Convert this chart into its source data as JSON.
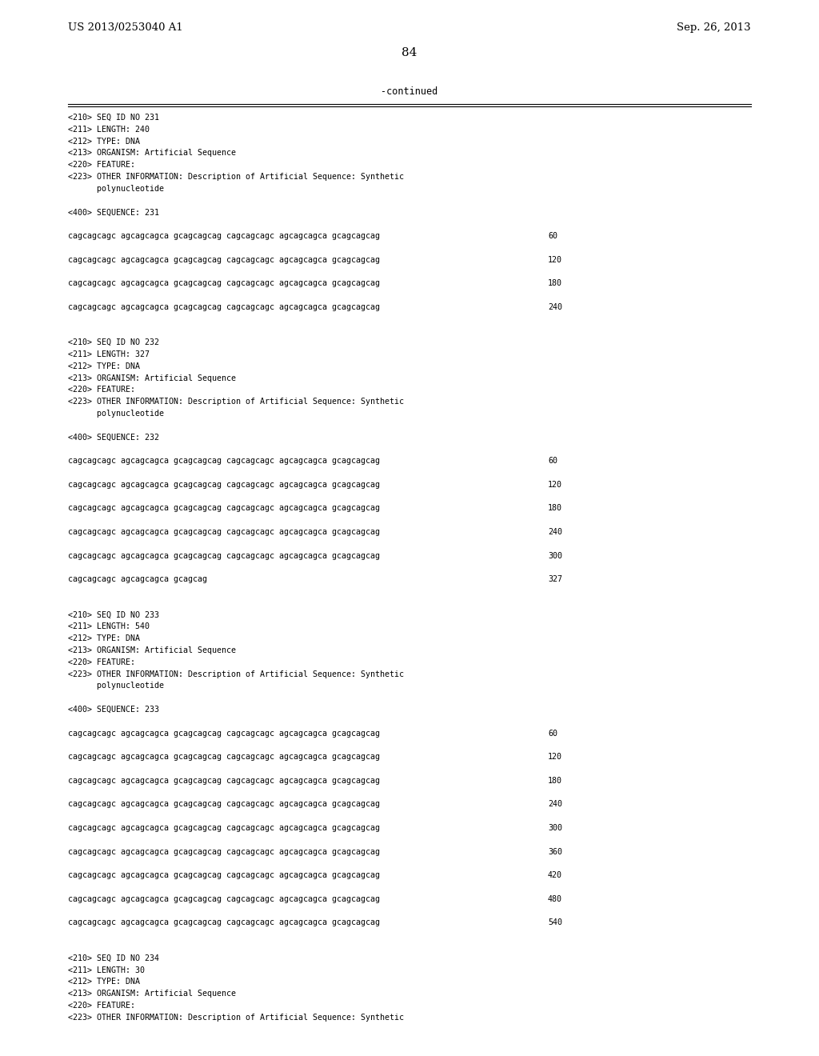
{
  "background_color": "#ffffff",
  "header_left": "US 2013/0253040 A1",
  "header_right": "Sep. 26, 2013",
  "page_number": "84",
  "continued_text": "-continued",
  "figsize": [
    10.24,
    13.2
  ],
  "dpi": 100,
  "content": [
    {
      "type": "meta",
      "lines": [
        "<210> SEQ ID NO 231",
        "<211> LENGTH: 240",
        "<212> TYPE: DNA",
        "<213> ORGANISM: Artificial Sequence",
        "<220> FEATURE:",
        "<223> OTHER INFORMATION: Description of Artificial Sequence: Synthetic",
        "      polynucleotide"
      ]
    },
    {
      "type": "blank"
    },
    {
      "type": "seqlabel",
      "text": "<400> SEQUENCE: 231"
    },
    {
      "type": "blank"
    },
    {
      "type": "seq",
      "seq": "cagcagcagc agcagcagca gcagcagcag cagcagcagc agcagcagca gcagcagcag",
      "num": "60"
    },
    {
      "type": "blank"
    },
    {
      "type": "seq",
      "seq": "cagcagcagc agcagcagca gcagcagcag cagcagcagc agcagcagca gcagcagcag",
      "num": "120"
    },
    {
      "type": "blank"
    },
    {
      "type": "seq",
      "seq": "cagcagcagc agcagcagca gcagcagcag cagcagcagc agcagcagca gcagcagcag",
      "num": "180"
    },
    {
      "type": "blank"
    },
    {
      "type": "seq",
      "seq": "cagcagcagc agcagcagca gcagcagcag cagcagcagc agcagcagca gcagcagcag",
      "num": "240"
    },
    {
      "type": "blank"
    },
    {
      "type": "blank"
    },
    {
      "type": "meta",
      "lines": [
        "<210> SEQ ID NO 232",
        "<211> LENGTH: 327",
        "<212> TYPE: DNA",
        "<213> ORGANISM: Artificial Sequence",
        "<220> FEATURE:",
        "<223> OTHER INFORMATION: Description of Artificial Sequence: Synthetic",
        "      polynucleotide"
      ]
    },
    {
      "type": "blank"
    },
    {
      "type": "seqlabel",
      "text": "<400> SEQUENCE: 232"
    },
    {
      "type": "blank"
    },
    {
      "type": "seq",
      "seq": "cagcagcagc agcagcagca gcagcagcag cagcagcagc agcagcagca gcagcagcag",
      "num": "60"
    },
    {
      "type": "blank"
    },
    {
      "type": "seq",
      "seq": "cagcagcagc agcagcagca gcagcagcag cagcagcagc agcagcagca gcagcagcag",
      "num": "120"
    },
    {
      "type": "blank"
    },
    {
      "type": "seq",
      "seq": "cagcagcagc agcagcagca gcagcagcag cagcagcagc agcagcagca gcagcagcag",
      "num": "180"
    },
    {
      "type": "blank"
    },
    {
      "type": "seq",
      "seq": "cagcagcagc agcagcagca gcagcagcag cagcagcagc agcagcagca gcagcagcag",
      "num": "240"
    },
    {
      "type": "blank"
    },
    {
      "type": "seq",
      "seq": "cagcagcagc agcagcagca gcagcagcag cagcagcagc agcagcagca gcagcagcag",
      "num": "300"
    },
    {
      "type": "blank"
    },
    {
      "type": "seq",
      "seq": "cagcagcagc agcagcagca gcagcag",
      "num": "327"
    },
    {
      "type": "blank"
    },
    {
      "type": "blank"
    },
    {
      "type": "meta",
      "lines": [
        "<210> SEQ ID NO 233",
        "<211> LENGTH: 540",
        "<212> TYPE: DNA",
        "<213> ORGANISM: Artificial Sequence",
        "<220> FEATURE:",
        "<223> OTHER INFORMATION: Description of Artificial Sequence: Synthetic",
        "      polynucleotide"
      ]
    },
    {
      "type": "blank"
    },
    {
      "type": "seqlabel",
      "text": "<400> SEQUENCE: 233"
    },
    {
      "type": "blank"
    },
    {
      "type": "seq",
      "seq": "cagcagcagc agcagcagca gcagcagcag cagcagcagc agcagcagca gcagcagcag",
      "num": "60"
    },
    {
      "type": "blank"
    },
    {
      "type": "seq",
      "seq": "cagcagcagc agcagcagca gcagcagcag cagcagcagc agcagcagca gcagcagcag",
      "num": "120"
    },
    {
      "type": "blank"
    },
    {
      "type": "seq",
      "seq": "cagcagcagc agcagcagca gcagcagcag cagcagcagc agcagcagca gcagcagcag",
      "num": "180"
    },
    {
      "type": "blank"
    },
    {
      "type": "seq",
      "seq": "cagcagcagc agcagcagca gcagcagcag cagcagcagc agcagcagca gcagcagcag",
      "num": "240"
    },
    {
      "type": "blank"
    },
    {
      "type": "seq",
      "seq": "cagcagcagc agcagcagca gcagcagcag cagcagcagc agcagcagca gcagcagcag",
      "num": "300"
    },
    {
      "type": "blank"
    },
    {
      "type": "seq",
      "seq": "cagcagcagc agcagcagca gcagcagcag cagcagcagc agcagcagca gcagcagcag",
      "num": "360"
    },
    {
      "type": "blank"
    },
    {
      "type": "seq",
      "seq": "cagcagcagc agcagcagca gcagcagcag cagcagcagc agcagcagca gcagcagcag",
      "num": "420"
    },
    {
      "type": "blank"
    },
    {
      "type": "seq",
      "seq": "cagcagcagc agcagcagca gcagcagcag cagcagcagc agcagcagca gcagcagcag",
      "num": "480"
    },
    {
      "type": "blank"
    },
    {
      "type": "seq",
      "seq": "cagcagcagc agcagcagca gcagcagcag cagcagcagc agcagcagca gcagcagcag",
      "num": "540"
    },
    {
      "type": "blank"
    },
    {
      "type": "blank"
    },
    {
      "type": "meta",
      "lines": [
        "<210> SEQ ID NO 234",
        "<211> LENGTH: 30",
        "<212> TYPE: DNA",
        "<213> ORGANISM: Artificial Sequence",
        "<220> FEATURE:",
        "<223> OTHER INFORMATION: Description of Artificial Sequence: Synthetic"
      ]
    }
  ]
}
